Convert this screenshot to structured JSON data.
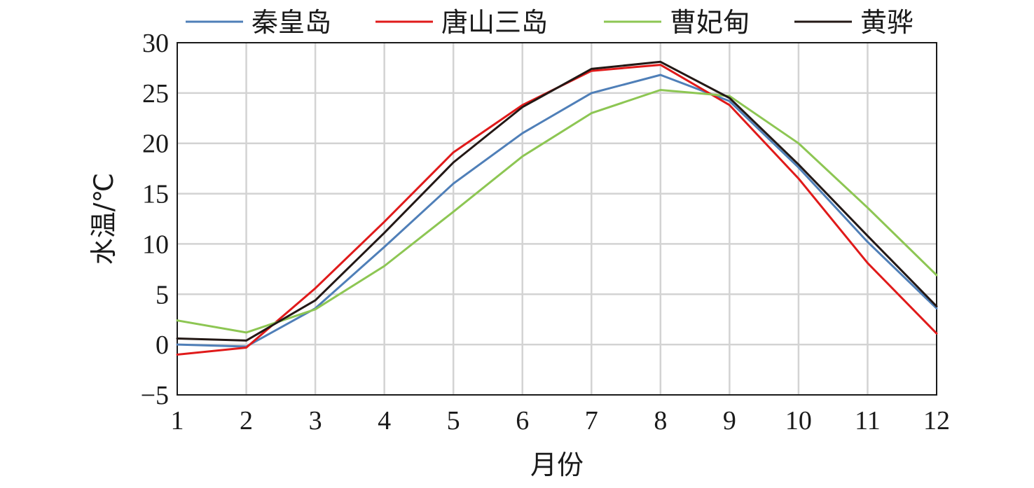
{
  "chart_data": {
    "type": "line",
    "xlabel": "月份",
    "ylabel": "水温/℃",
    "categories": [
      "1",
      "2",
      "3",
      "4",
      "5",
      "6",
      "7",
      "8",
      "9",
      "10",
      "11",
      "12"
    ],
    "x": [
      1,
      2,
      3,
      4,
      5,
      6,
      7,
      8,
      9,
      10,
      11,
      12
    ],
    "ylim": [
      -5,
      30
    ],
    "xlim": [
      1,
      12
    ],
    "yticks": [
      -5,
      0,
      5,
      10,
      15,
      20,
      25,
      30
    ],
    "ytick_labels": [
      "−5",
      "0",
      "5",
      "10",
      "15",
      "20",
      "25",
      "30"
    ],
    "grid": true,
    "legend_position": "top",
    "series": [
      {
        "name": "秦皇岛",
        "color": "#4f7fb8",
        "values": [
          0.0,
          -0.2,
          3.6,
          9.7,
          16.0,
          21.0,
          25.0,
          26.8,
          24.2,
          17.6,
          10.2,
          3.6
        ]
      },
      {
        "name": "唐山三岛",
        "color": "#e01a1a",
        "values": [
          -1.0,
          -0.3,
          5.6,
          12.2,
          19.1,
          23.8,
          27.2,
          27.8,
          23.8,
          16.5,
          8.1,
          1.1
        ]
      },
      {
        "name": "曹妃甸",
        "color": "#8dc653",
        "values": [
          2.4,
          1.2,
          3.5,
          7.8,
          13.2,
          18.7,
          23.0,
          25.3,
          24.7,
          20.0,
          13.6,
          6.9
        ]
      },
      {
        "name": "黄骅",
        "color": "#231815",
        "values": [
          0.6,
          0.4,
          4.4,
          11.1,
          18.1,
          23.6,
          27.4,
          28.1,
          24.5,
          17.9,
          10.8,
          3.8
        ]
      }
    ]
  }
}
